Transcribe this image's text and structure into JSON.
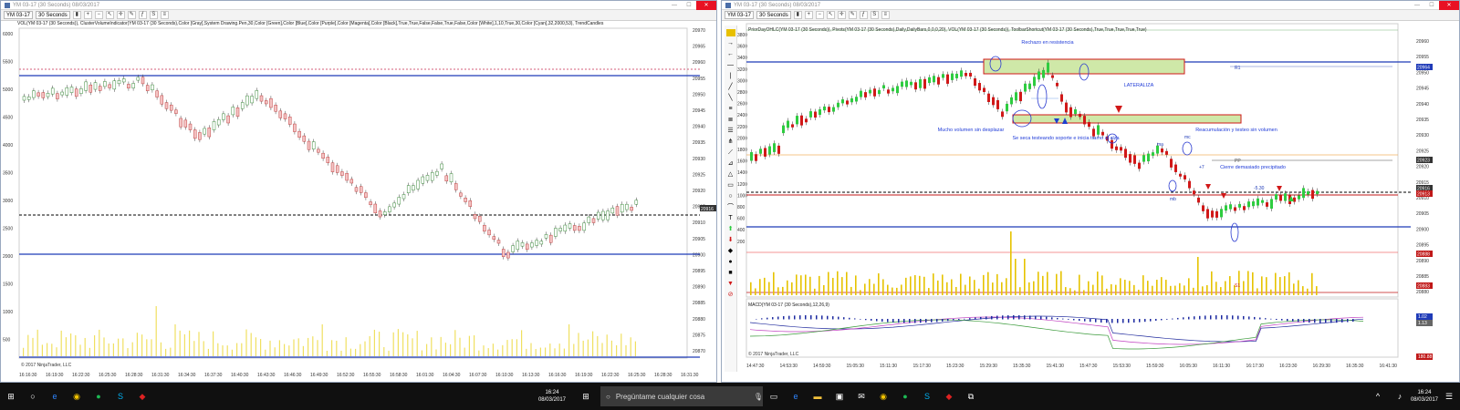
{
  "left_window": {
    "title": "YM 03-17 (30 Seconds) 08/03/2017",
    "instrument": "YM 03-17",
    "interval": "30 Seconds",
    "indicator_text": "VOL(YM 03-17 (30 Seconds)), ClusterVolumeIndicator(YM 03-17 (30 Seconds),Color [Gray],System Drawing.Pen,30,Color [Green],Color [Blue],Color [Purple],Color [Magenta],Color [Black],True,True,False,False,True,False,Color [White],1,10,True,30,Color [Cyan],32,2000,53), TrendCandles",
    "left_axis": [
      "6000",
      "5500",
      "5000",
      "4500",
      "4000",
      "3500",
      "3000",
      "2500",
      "2000",
      "1500",
      "1000",
      "500"
    ],
    "right_axis": [
      "20970",
      "20965",
      "20960",
      "20955",
      "20950",
      "20945",
      "20940",
      "20935",
      "20930",
      "20925",
      "20920",
      "20915",
      "20910",
      "20905",
      "20900",
      "20895",
      "20890",
      "20885",
      "20880",
      "20875",
      "20870"
    ],
    "price_label": "20916",
    "time_axis": [
      "16:16:30",
      "16:19:30",
      "16:22:30",
      "16:25:30",
      "16:28:30",
      "16:31:30",
      "16:34:30",
      "16:37:30",
      "16:40:30",
      "16:43:30",
      "16:46:30",
      "16:49:30",
      "16:52:30",
      "16:55:30",
      "16:58:30",
      "16:01:30",
      "16:04:30",
      "16:07:30",
      "16:10:30",
      "16:13:30",
      "16:16:30",
      "16:19:30",
      "16:22:30",
      "16:25:30",
      "16:28:30",
      "16:31:30"
    ],
    "copyright": "© 2017 NinjaTrader, LLC"
  },
  "right_window": {
    "title": "YM 03-17 (30 Seconds) 08/03/2017",
    "instrument": "YM 03-17",
    "interval": "30 Seconds",
    "indicator_text": "PriorDayOHLC(YM 03-17 (30 Seconds)), Pivots(YM 03-17 (30 Seconds),Daily,DailyBars,0,0,0,20), VOL(YM 03-17 (30 Seconds)), ToolbarShortcut(YM 03-17 (30 Seconds),True,True,True,True,True)",
    "macd_text": "MACD(YM 03-17 (30 Seconds),12,26,9)",
    "left_axis": [
      "3800",
      "3600",
      "3400",
      "3200",
      "3000",
      "2800",
      "2600",
      "2400",
      "2200",
      "2000",
      "1800",
      "1600",
      "1400",
      "1200",
      "1000",
      "800",
      "600",
      "400",
      "200"
    ],
    "right_axis": [
      "20960",
      "20955",
      "20950",
      "20945",
      "20940",
      "20935",
      "20930",
      "20925",
      "20920",
      "20915",
      "20910",
      "20905",
      "20900",
      "20895",
      "20890",
      "20885",
      "20880"
    ],
    "price_tags": [
      {
        "text": "20964",
        "color": "#1f3bb8"
      },
      {
        "text": "20923",
        "color": "#333333"
      },
      {
        "text": "20916",
        "color": "#333333"
      },
      {
        "text": "20913",
        "color": "#c01818"
      },
      {
        "text": "20888",
        "color": "#c01818"
      },
      {
        "text": "20883",
        "color": "#c01818"
      }
    ],
    "macd_tags": [
      "1.02",
      "1.13"
    ],
    "bottom_tag": "180.88",
    "time_axis": [
      "14:47:30",
      "14:53:30",
      "14:59:30",
      "15:05:30",
      "15:11:30",
      "15:17:30",
      "15:23:30",
      "15:29:30",
      "15:35:30",
      "15:41:30",
      "15:47:30",
      "15:53:30",
      "15:59:30",
      "16:05:30",
      "16:11:30",
      "16:17:30",
      "16:23:30",
      "16:29:30",
      "16:35:30",
      "16:41:30"
    ],
    "annotations": {
      "rechazo": "Rechazo en resistencia",
      "lateraliza": "LATERALIZA",
      "mucho_volumen": "Mucho volumen sin desplazar",
      "se_seca": "Se seca testeando soporte e inicia tramo al alza",
      "reacumulacion": "Reacumulación y testeo sin volumen",
      "cierre": "Cierre demasiado precipitado",
      "r1": "R1",
      "pp": "PP",
      "ma": "ma",
      "mb": "mb",
      "mc": "mc",
      "plus7": "+7",
      "minus530": "-5.30",
      "s1": "S1"
    },
    "copyright": "© 2017 NinjaTrader, LLC"
  },
  "taskbar": {
    "search_placeholder": "Pregúntame cualquier cosa",
    "left_time": "16:24",
    "left_date": "08/03/2017",
    "right_time": "16:24",
    "right_date": "08/03/2017"
  },
  "colors": {
    "up_candle": "#2ecc40",
    "down_candle": "#d11818",
    "pivot_blue": "#1f3bb8",
    "volume": "#e6c300",
    "annotation": "#1f3bd8",
    "zone_fill": "#cfe8a8"
  }
}
